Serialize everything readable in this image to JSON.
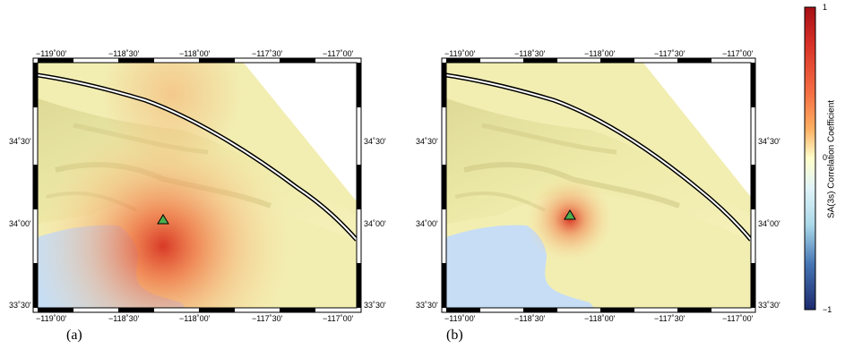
{
  "panels": [
    {
      "id": "a",
      "label": "(a)",
      "lon_ticks": [
        "−119˚00'",
        "−118˚30'",
        "−118˚00'",
        "−117˚30'",
        "−117˚00'"
      ],
      "lat_ticks": [
        "34˚30'",
        "34˚00'",
        "33˚30'"
      ],
      "station_marker": "triangle-marker",
      "correlation_pattern": "broad"
    },
    {
      "id": "b",
      "label": "(b)",
      "lon_ticks": [
        "−119˚00'",
        "−118˚30'",
        "−118˚00'",
        "−117˚30'",
        "−117˚00'"
      ],
      "lat_ticks": [
        "34˚30'",
        "34˚00'",
        "33˚30'"
      ],
      "station_marker": "triangle-marker",
      "correlation_pattern": "localized"
    }
  ],
  "colorbar": {
    "title": "SA(3s) Correlation Coefficient",
    "ticks": [
      "1",
      "0",
      "−1"
    ],
    "colors": [
      "#a50f15",
      "#e04a2b",
      "#f6b26b",
      "#fde9a9",
      "#ffffcc",
      "#deebf7",
      "#6aaed6",
      "#2b5aa0",
      "#1d2a6e"
    ]
  },
  "colors": {
    "land": "#f2eeb2",
    "ocean": "#c6ddf5",
    "fault": "#000000",
    "marker_fill": "#4caf50"
  }
}
